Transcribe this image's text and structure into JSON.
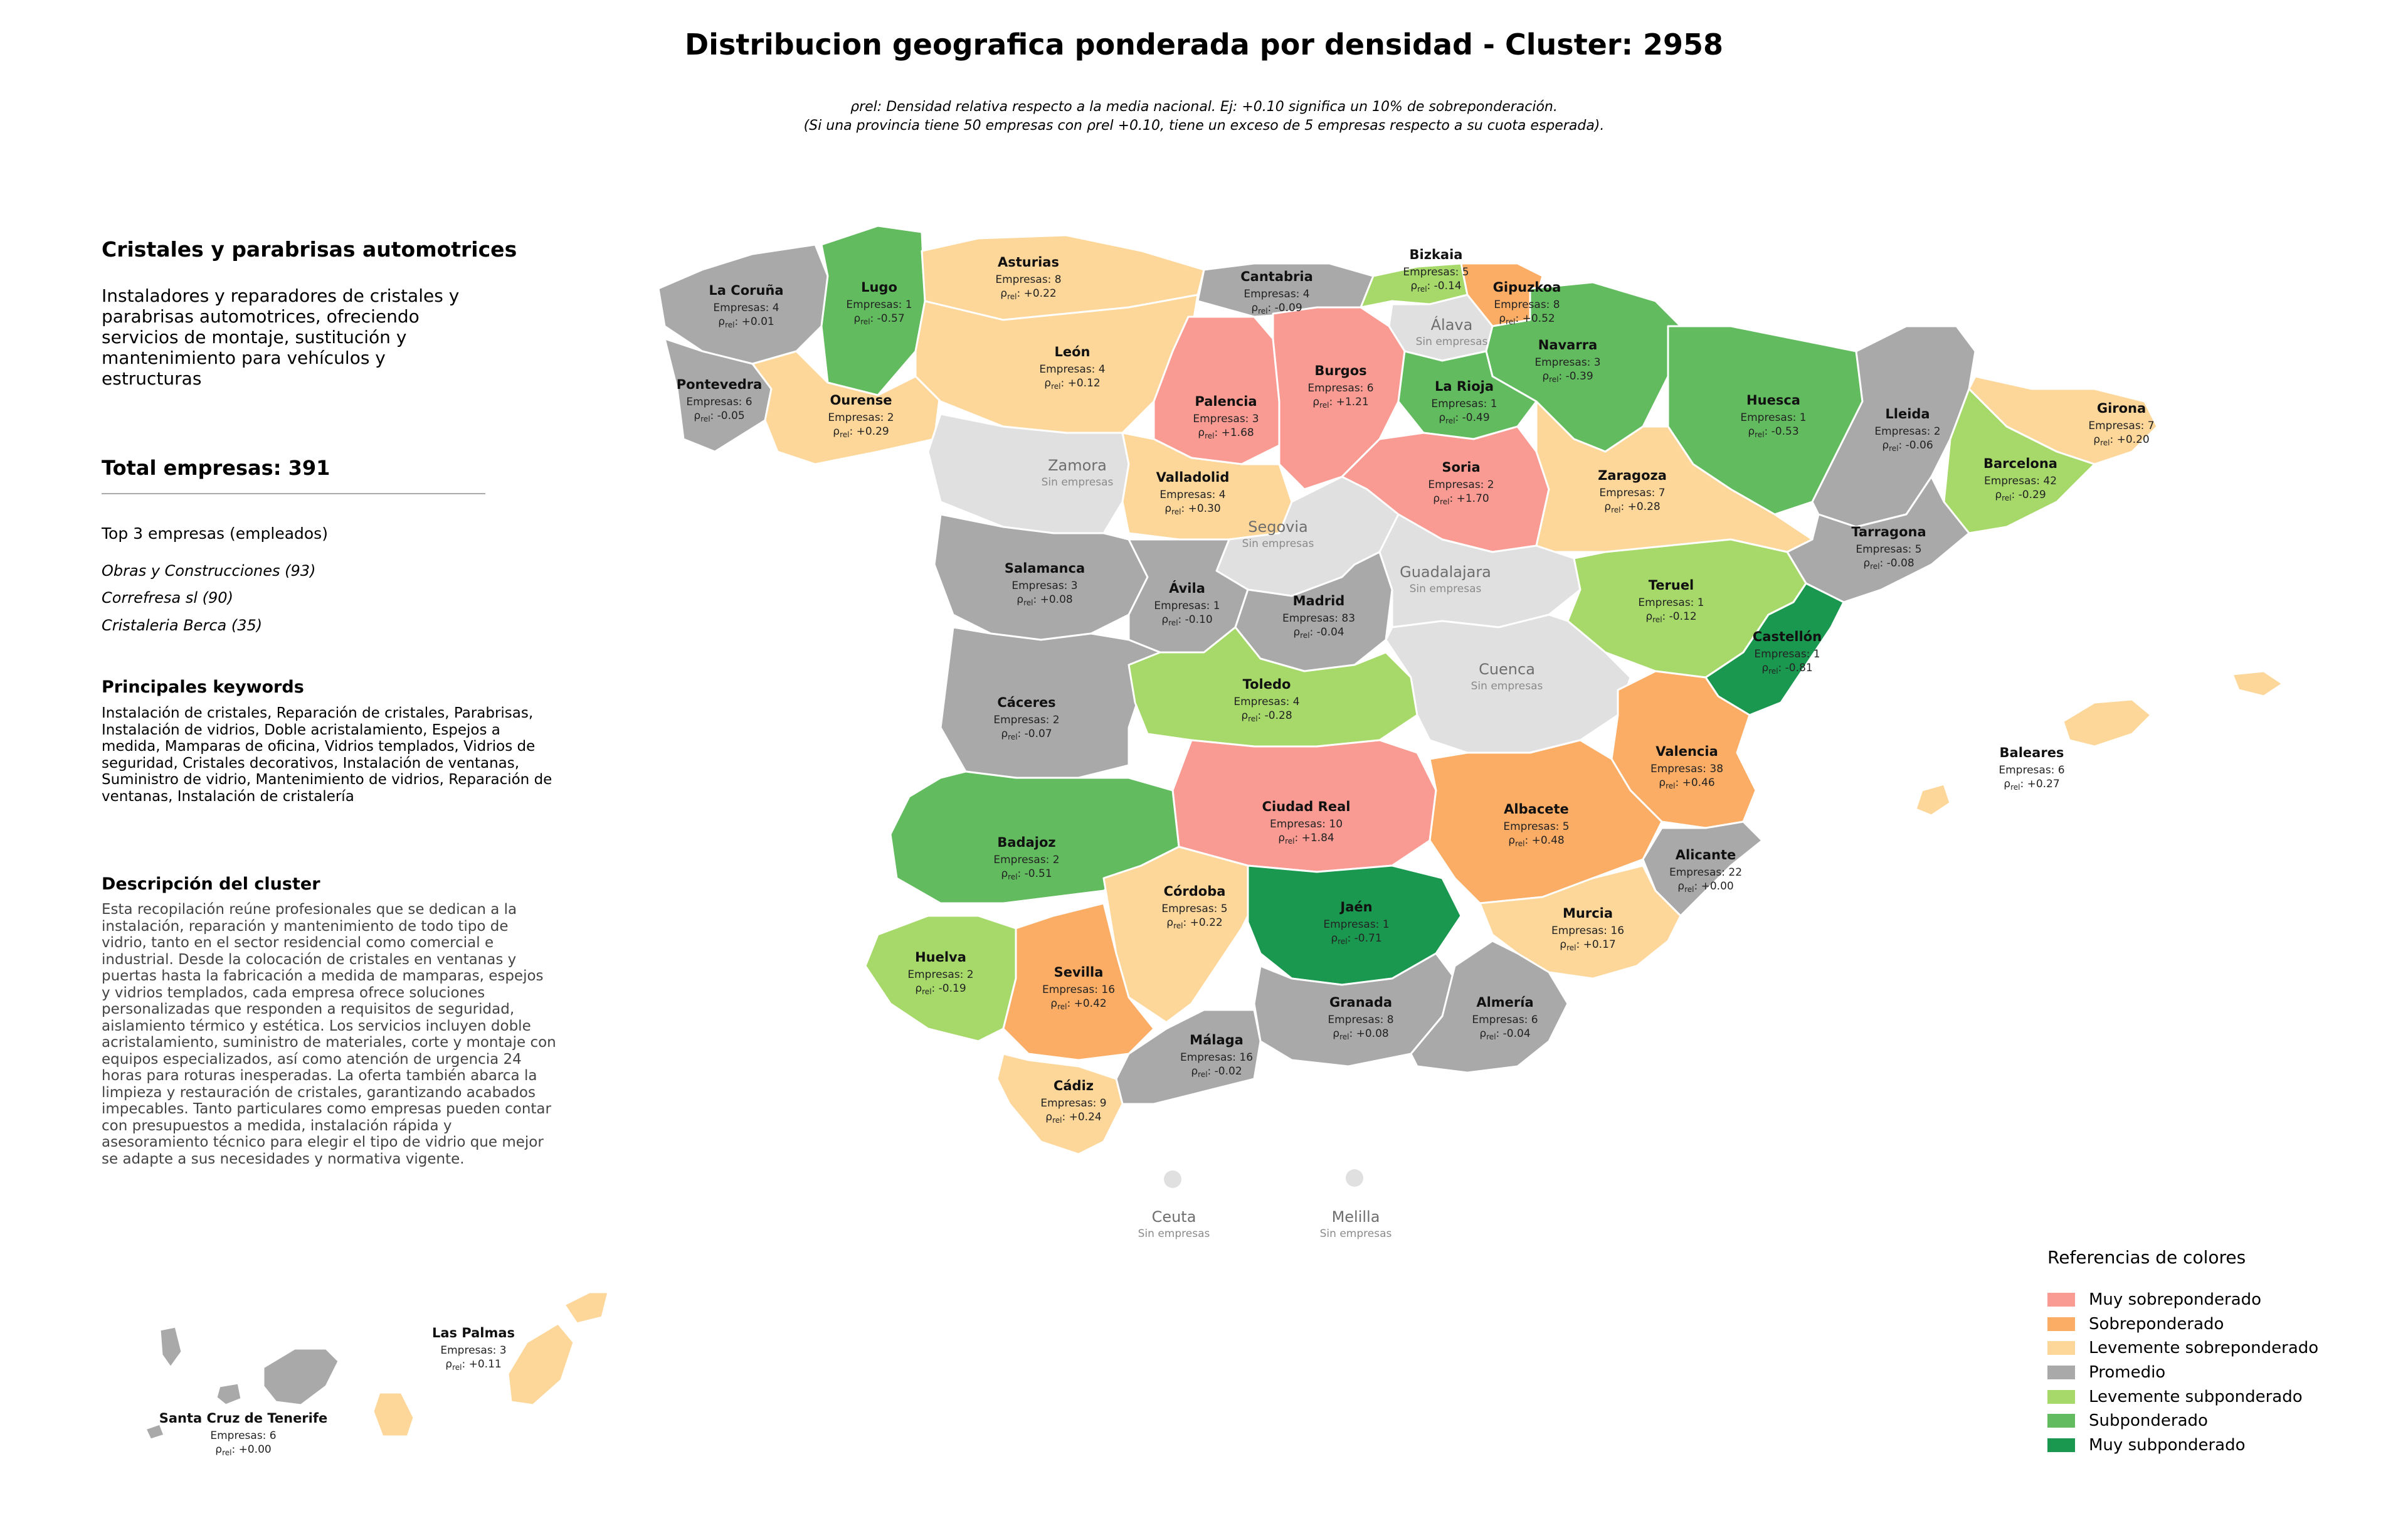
{
  "title": "Distribucion geografica ponderada por densidad - Cluster: 2958",
  "subtitle_lines": [
    "ρrel: Densidad relativa respecto a la media nacional. Ej: +0.10 significa un 10% de sobreponderación.",
    "(Si una provincia tiene 50 empresas con ρrel +0.10, tiene un exceso de 5 empresas respecto a su cuota esperada)."
  ],
  "panel": {
    "heading": "Cristales y parabrisas automotrices",
    "description": "Instaladores y reparadores de cristales y parabrisas automotrices, ofreciendo servicios de montaje, sustitución y mantenimiento para vehículos y estructuras",
    "total": "Total empresas: 391",
    "top3_title": "Top 3 empresas (empleados)",
    "top3": [
      "Obras y Construcciones (93)",
      "Correfresa sl (90)",
      "Cristaleria Berca (35)"
    ],
    "keywords_title": "Principales keywords",
    "keywords": "Instalación de cristales, Reparación de cristales, Parabrisas, Instalación de vidrios, Doble acristalamiento, Espejos a medida, Mamparas de oficina, Vidrios templados, Vidrios de seguridad, Cristales decorativos, Instalación de ventanas, Suministro de vidrio, Mantenimiento de vidrios, Reparación de ventanas, Instalación de cristalería",
    "cluster_title": "Descripción del cluster",
    "cluster_text": "Esta recopilación reúne profesionales que se dedican a la instalación, reparación y mantenimiento de todo tipo de vidrio, tanto en el sector residencial como comercial e industrial. Desde la colocación de cristales en ventanas y puertas hasta la fabricación a medida de mamparas, espejos y vidrios templados, cada empresa ofrece soluciones personalizadas que responden a requisitos de seguridad, aislamiento térmico y estética. Los servicios incluyen doble acristalamiento, suministro de materiales, corte y montaje con equipos especializados, así como atención de urgencia 24 horas para roturas inesperadas. La oferta también abarca la limpieza y restauración de cristales, garantizando acabados impecables. Tanto particulares como empresas pueden contar con presupuestos a medida, instalación rápida y asesoramiento técnico para elegir el tipo de vidrio que mejor se adapte a sus necesidades y normativa vigente."
  },
  "legend": {
    "title": "Referencias de colores",
    "items": [
      {
        "label": "Muy sobreponderado",
        "color": "#f99b93"
      },
      {
        "label": "Sobreponderado",
        "color": "#fbad65"
      },
      {
        "label": "Levemente sobreponderado",
        "color": "#fdd699"
      },
      {
        "label": "Promedio",
        "color": "#a9a9a9"
      },
      {
        "label": "Levemente subponderado",
        "color": "#a6d96a"
      },
      {
        "label": "Subponderado",
        "color": "#62bb5f"
      },
      {
        "label": "Muy subponderado",
        "color": "#1a9850"
      }
    ]
  },
  "no_data_color": "#e0e0e0",
  "empresas_prefix": "Empresas: ",
  "rho_symbol": "ρ",
  "rho_sub": "rel",
  "no_data_label": "Sin empresas",
  "provinces": [
    {
      "name": "La Coruña",
      "empresas": 4,
      "rho": "+0.01",
      "cat": 3
    },
    {
      "name": "Lugo",
      "empresas": 1,
      "rho": "-0.57",
      "cat": 5
    },
    {
      "name": "Asturias",
      "empresas": 8,
      "rho": "+0.22",
      "cat": 2
    },
    {
      "name": "Cantabria",
      "empresas": 4,
      "rho": "-0.09",
      "cat": 3
    },
    {
      "name": "Bizkaia",
      "empresas": 5,
      "rho": "-0.14",
      "cat": 4
    },
    {
      "name": "Gipuzkoa",
      "empresas": 8,
      "rho": "+0.52",
      "cat": 1
    },
    {
      "name": "Álava",
      "empresas": null,
      "rho": null,
      "cat": null
    },
    {
      "name": "Navarra",
      "empresas": 3,
      "rho": "-0.39",
      "cat": 5
    },
    {
      "name": "Pontevedra",
      "empresas": 6,
      "rho": "-0.05",
      "cat": 3
    },
    {
      "name": "Ourense",
      "empresas": 2,
      "rho": "+0.29",
      "cat": 2
    },
    {
      "name": "León",
      "empresas": 4,
      "rho": "+0.12",
      "cat": 2
    },
    {
      "name": "Palencia",
      "empresas": 3,
      "rho": "+1.68",
      "cat": 0
    },
    {
      "name": "Burgos",
      "empresas": 6,
      "rho": "+1.21",
      "cat": 0
    },
    {
      "name": "La Rioja",
      "empresas": 1,
      "rho": "-0.49",
      "cat": 5
    },
    {
      "name": "Huesca",
      "empresas": 1,
      "rho": "-0.53",
      "cat": 5
    },
    {
      "name": "Lleida",
      "empresas": 2,
      "rho": "-0.06",
      "cat": 3
    },
    {
      "name": "Girona",
      "empresas": 7,
      "rho": "+0.20",
      "cat": 2
    },
    {
      "name": "Barcelona",
      "empresas": 42,
      "rho": "-0.29",
      "cat": 4
    },
    {
      "name": "Zamora",
      "empresas": null,
      "rho": null,
      "cat": null
    },
    {
      "name": "Valladolid",
      "empresas": 4,
      "rho": "+0.30",
      "cat": 2
    },
    {
      "name": "Soria",
      "empresas": 2,
      "rho": "+1.70",
      "cat": 0
    },
    {
      "name": "Zaragoza",
      "empresas": 7,
      "rho": "+0.28",
      "cat": 2
    },
    {
      "name": "Tarragona",
      "empresas": 5,
      "rho": "-0.08",
      "cat": 3
    },
    {
      "name": "Segovia",
      "empresas": null,
      "rho": null,
      "cat": null
    },
    {
      "name": "Salamanca",
      "empresas": 3,
      "rho": "+0.08",
      "cat": 3
    },
    {
      "name": "Ávila",
      "empresas": 1,
      "rho": "-0.10",
      "cat": 3
    },
    {
      "name": "Madrid",
      "empresas": 83,
      "rho": "-0.04",
      "cat": 3
    },
    {
      "name": "Guadalajara",
      "empresas": null,
      "rho": null,
      "cat": null
    },
    {
      "name": "Teruel",
      "empresas": 1,
      "rho": "-0.12",
      "cat": 4
    },
    {
      "name": "Castellón",
      "empresas": 1,
      "rho": "-0.81",
      "cat": 6
    },
    {
      "name": "Cáceres",
      "empresas": 2,
      "rho": "-0.07",
      "cat": 3
    },
    {
      "name": "Toledo",
      "empresas": 4,
      "rho": "-0.28",
      "cat": 4
    },
    {
      "name": "Cuenca",
      "empresas": null,
      "rho": null,
      "cat": null
    },
    {
      "name": "Valencia",
      "empresas": 38,
      "rho": "+0.46",
      "cat": 1
    },
    {
      "name": "Ciudad Real",
      "empresas": 10,
      "rho": "+1.84",
      "cat": 0
    },
    {
      "name": "Albacete",
      "empresas": 5,
      "rho": "+0.48",
      "cat": 1
    },
    {
      "name": "Badajoz",
      "empresas": 2,
      "rho": "-0.51",
      "cat": 5
    },
    {
      "name": "Alicante",
      "empresas": 22,
      "rho": "+0.00",
      "cat": 3
    },
    {
      "name": "Córdoba",
      "empresas": 5,
      "rho": "+0.22",
      "cat": 2
    },
    {
      "name": "Jaén",
      "empresas": 1,
      "rho": "-0.71",
      "cat": 6
    },
    {
      "name": "Murcia",
      "empresas": 16,
      "rho": "+0.17",
      "cat": 2
    },
    {
      "name": "Huelva",
      "empresas": 2,
      "rho": "-0.19",
      "cat": 4
    },
    {
      "name": "Sevilla",
      "empresas": 16,
      "rho": "+0.42",
      "cat": 1
    },
    {
      "name": "Granada",
      "empresas": 8,
      "rho": "+0.08",
      "cat": 3
    },
    {
      "name": "Almería",
      "empresas": 6,
      "rho": "-0.04",
      "cat": 3
    },
    {
      "name": "Málaga",
      "empresas": 16,
      "rho": "-0.02",
      "cat": 3
    },
    {
      "name": "Cádiz",
      "empresas": 9,
      "rho": "+0.24",
      "cat": 2
    },
    {
      "name": "Baleares",
      "empresas": 6,
      "rho": "+0.27",
      "cat": 2
    },
    {
      "name": "Ceuta",
      "empresas": null,
      "rho": null,
      "cat": null
    },
    {
      "name": "Melilla",
      "empresas": null,
      "rho": null,
      "cat": null
    },
    {
      "name": "Las Palmas",
      "empresas": 3,
      "rho": "+0.11",
      "cat": 2
    },
    {
      "name": "Santa Cruz de Tenerife",
      "empresas": 6,
      "rho": "+0.00",
      "cat": 3
    }
  ]
}
